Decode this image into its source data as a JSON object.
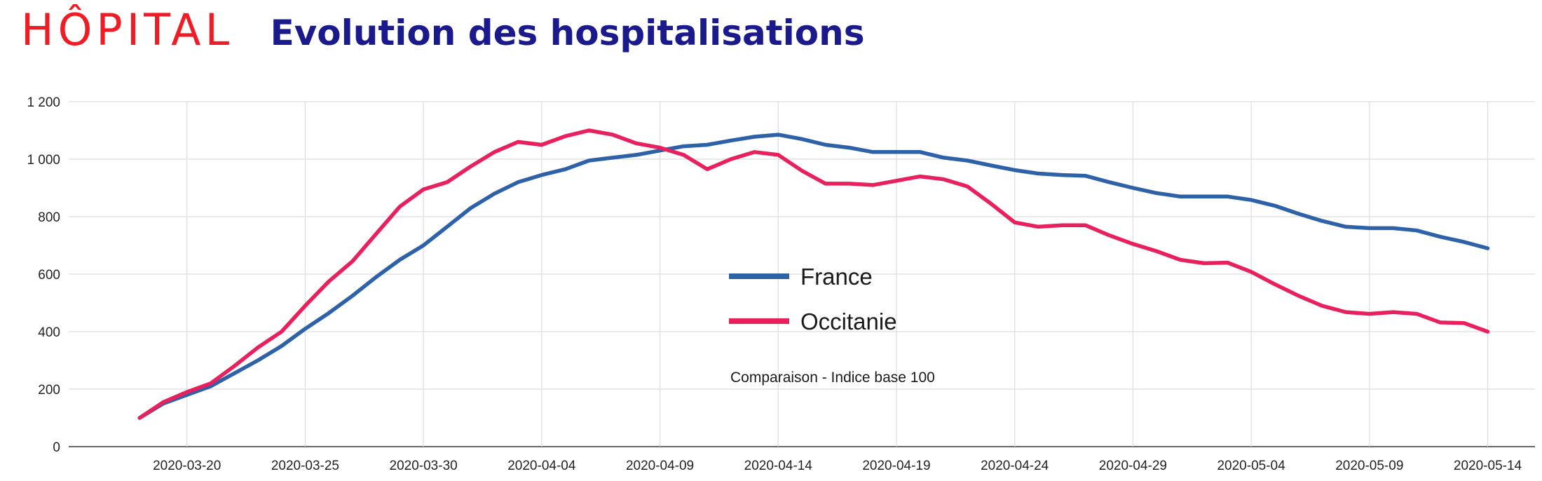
{
  "header": {
    "section": "HÔPITAL",
    "title": "Evolution des hospitalisations"
  },
  "chart_data": {
    "type": "line",
    "title": "Evolution des hospitalisations",
    "xlabel": "",
    "ylabel": "",
    "annotation": "Comparaison - Indice base 100",
    "ylim": [
      0,
      1200
    ],
    "yticks": [
      0,
      200,
      400,
      600,
      800,
      1000,
      1200
    ],
    "ytick_labels": [
      "0",
      "200",
      "400",
      "600",
      "800",
      "1 000",
      "1 200"
    ],
    "xlim": [
      "2020-03-15",
      "2020-05-16"
    ],
    "xticks": [
      "2020-03-20",
      "2020-03-25",
      "2020-03-30",
      "2020-04-04",
      "2020-04-09",
      "2020-04-14",
      "2020-04-19",
      "2020-04-24",
      "2020-04-29",
      "2020-05-04",
      "2020-05-09",
      "2020-05-14"
    ],
    "grid": true,
    "legend_position": "center",
    "series": [
      {
        "name": "France",
        "color": "#2e62a8",
        "points": [
          [
            "2020-03-18",
            100
          ],
          [
            "2020-03-19",
            150
          ],
          [
            "2020-03-20",
            180
          ],
          [
            "2020-03-21",
            210
          ],
          [
            "2020-03-22",
            255
          ],
          [
            "2020-03-23",
            300
          ],
          [
            "2020-03-24",
            350
          ],
          [
            "2020-03-25",
            410
          ],
          [
            "2020-03-26",
            465
          ],
          [
            "2020-03-27",
            525
          ],
          [
            "2020-03-28",
            590
          ],
          [
            "2020-03-29",
            650
          ],
          [
            "2020-03-30",
            700
          ],
          [
            "2020-03-31",
            765
          ],
          [
            "2020-04-01",
            830
          ],
          [
            "2020-04-02",
            880
          ],
          [
            "2020-04-03",
            920
          ],
          [
            "2020-04-04",
            945
          ],
          [
            "2020-04-05",
            965
          ],
          [
            "2020-04-06",
            995
          ],
          [
            "2020-04-07",
            1005
          ],
          [
            "2020-04-08",
            1015
          ],
          [
            "2020-04-09",
            1030
          ],
          [
            "2020-04-10",
            1045
          ],
          [
            "2020-04-11",
            1050
          ],
          [
            "2020-04-12",
            1065
          ],
          [
            "2020-04-13",
            1078
          ],
          [
            "2020-04-14",
            1085
          ],
          [
            "2020-04-15",
            1070
          ],
          [
            "2020-04-16",
            1050
          ],
          [
            "2020-04-17",
            1040
          ],
          [
            "2020-04-18",
            1025
          ],
          [
            "2020-04-19",
            1025
          ],
          [
            "2020-04-20",
            1025
          ],
          [
            "2020-04-21",
            1005
          ],
          [
            "2020-04-22",
            995
          ],
          [
            "2020-04-23",
            978
          ],
          [
            "2020-04-24",
            962
          ],
          [
            "2020-04-25",
            950
          ],
          [
            "2020-04-26",
            945
          ],
          [
            "2020-04-27",
            942
          ],
          [
            "2020-04-28",
            920
          ],
          [
            "2020-04-29",
            900
          ],
          [
            "2020-04-30",
            882
          ],
          [
            "2020-05-01",
            870
          ],
          [
            "2020-05-02",
            870
          ],
          [
            "2020-05-03",
            870
          ],
          [
            "2020-05-04",
            858
          ],
          [
            "2020-05-05",
            838
          ],
          [
            "2020-05-06",
            810
          ],
          [
            "2020-05-07",
            785
          ],
          [
            "2020-05-08",
            765
          ],
          [
            "2020-05-09",
            760
          ],
          [
            "2020-05-10",
            760
          ],
          [
            "2020-05-11",
            752
          ],
          [
            "2020-05-12",
            730
          ],
          [
            "2020-05-13",
            712
          ],
          [
            "2020-05-14",
            690
          ]
        ]
      },
      {
        "name": "Occitanie",
        "color": "#e8215e",
        "points": [
          [
            "2020-03-18",
            100
          ],
          [
            "2020-03-19",
            155
          ],
          [
            "2020-03-20",
            190
          ],
          [
            "2020-03-21",
            220
          ],
          [
            "2020-03-22",
            280
          ],
          [
            "2020-03-23",
            345
          ],
          [
            "2020-03-24",
            400
          ],
          [
            "2020-03-25",
            490
          ],
          [
            "2020-03-26",
            575
          ],
          [
            "2020-03-27",
            645
          ],
          [
            "2020-03-28",
            740
          ],
          [
            "2020-03-29",
            835
          ],
          [
            "2020-03-30",
            895
          ],
          [
            "2020-03-31",
            920
          ],
          [
            "2020-04-01",
            975
          ],
          [
            "2020-04-02",
            1025
          ],
          [
            "2020-04-03",
            1060
          ],
          [
            "2020-04-04",
            1050
          ],
          [
            "2020-04-05",
            1080
          ],
          [
            "2020-04-06",
            1100
          ],
          [
            "2020-04-07",
            1085
          ],
          [
            "2020-04-08",
            1055
          ],
          [
            "2020-04-09",
            1040
          ],
          [
            "2020-04-10",
            1015
          ],
          [
            "2020-04-11",
            965
          ],
          [
            "2020-04-12",
            1000
          ],
          [
            "2020-04-13",
            1025
          ],
          [
            "2020-04-14",
            1015
          ],
          [
            "2020-04-15",
            960
          ],
          [
            "2020-04-16",
            915
          ],
          [
            "2020-04-17",
            915
          ],
          [
            "2020-04-18",
            910
          ],
          [
            "2020-04-19",
            925
          ],
          [
            "2020-04-20",
            940
          ],
          [
            "2020-04-21",
            930
          ],
          [
            "2020-04-22",
            905
          ],
          [
            "2020-04-23",
            845
          ],
          [
            "2020-04-24",
            780
          ],
          [
            "2020-04-25",
            765
          ],
          [
            "2020-04-26",
            770
          ],
          [
            "2020-04-27",
            770
          ],
          [
            "2020-04-28",
            735
          ],
          [
            "2020-04-29",
            705
          ],
          [
            "2020-04-30",
            680
          ],
          [
            "2020-05-01",
            650
          ],
          [
            "2020-05-02",
            638
          ],
          [
            "2020-05-03",
            640
          ],
          [
            "2020-05-04",
            608
          ],
          [
            "2020-05-05",
            565
          ],
          [
            "2020-05-06",
            525
          ],
          [
            "2020-05-07",
            490
          ],
          [
            "2020-05-08",
            468
          ],
          [
            "2020-05-09",
            462
          ],
          [
            "2020-05-10",
            468
          ],
          [
            "2020-05-11",
            462
          ],
          [
            "2020-05-12",
            432
          ],
          [
            "2020-05-13",
            430
          ],
          [
            "2020-05-14",
            400
          ]
        ]
      }
    ]
  }
}
